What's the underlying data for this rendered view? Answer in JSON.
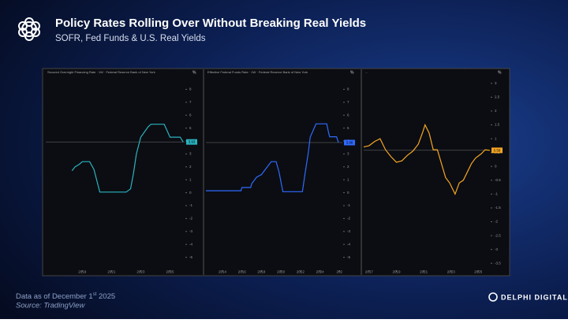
{
  "header": {
    "title": "Policy Rates Rolling Over Without Breaking Real Yields",
    "subtitle": "SOFR, Fed Funds & U.S. Real Yields"
  },
  "footer": {
    "date_prefix": "Data as of December 1",
    "date_suffix": "st",
    "date_year": "2025",
    "source": "Source: TradingView",
    "brand": "DELPHI DIGITAL"
  },
  "chart_data": [
    {
      "type": "line",
      "label": "Secured Overnight Financing Rate · 1W · Federal Reserve Bank of New York",
      "unit": "%",
      "color": "#2bb3c0",
      "x": [
        2018.3,
        2018.5,
        2018.8,
        2019.0,
        2019.5,
        2019.8,
        2020.2,
        2021.0,
        2022.0,
        2022.3,
        2022.5,
        2022.7,
        2023.0,
        2023.5,
        2023.7,
        2024.6,
        2024.8,
        2025.0,
        2025.7,
        2025.9
      ],
      "values": [
        1.7,
        2.0,
        2.2,
        2.4,
        2.4,
        1.8,
        0.05,
        0.05,
        0.05,
        0.3,
        1.5,
        3.0,
        4.3,
        5.1,
        5.3,
        5.3,
        4.8,
        4.3,
        4.3,
        3.93
      ],
      "last_value": 3.93,
      "xlim": [
        2016.5,
        2026.0
      ],
      "xticks": [
        2019,
        2021,
        2023,
        2025
      ],
      "ylim": [
        -6,
        9
      ],
      "yticks": [
        8,
        7,
        6,
        5,
        4,
        3,
        2,
        1,
        0,
        -1,
        -2,
        -3,
        -4,
        -5
      ]
    },
    {
      "type": "line",
      "label": "Effective Federal Funds Rate · 1W · Federal Reserve Bank of New York",
      "unit": "%",
      "color": "#2f6bff",
      "x": [
        2012.3,
        2015.9,
        2016.0,
        2016.9,
        2017.0,
        2017.5,
        2018.0,
        2018.5,
        2019.0,
        2019.5,
        2019.8,
        2020.2,
        2022.2,
        2022.5,
        2022.8,
        2023.0,
        2023.6,
        2024.7,
        2024.9,
        2025.0,
        2025.7,
        2025.9
      ],
      "values": [
        0.15,
        0.15,
        0.4,
        0.4,
        0.7,
        1.2,
        1.4,
        1.9,
        2.4,
        2.4,
        1.6,
        0.08,
        0.08,
        1.6,
        3.1,
        4.3,
        5.33,
        5.33,
        4.6,
        4.33,
        4.33,
        3.88
      ],
      "last_value": 3.88,
      "xlim": [
        2012.3,
        2026.3
      ],
      "xticks": [
        2014,
        2016,
        2018,
        2020,
        2022,
        2024,
        {
          "value": 2026,
          "label": "202"
        }
      ],
      "ylim": [
        -6,
        9
      ],
      "yticks": [
        8,
        7,
        6,
        5,
        4,
        3,
        2,
        1,
        0,
        -1,
        -2,
        -3,
        -4,
        -5
      ]
    },
    {
      "type": "line",
      "label": "...",
      "unit": "%",
      "color": "#f5a623",
      "x": [
        2016.6,
        2017.0,
        2017.4,
        2017.8,
        2018.2,
        2018.6,
        2019.0,
        2019.4,
        2019.8,
        2020.2,
        2020.6,
        2020.9,
        2021.1,
        2021.4,
        2021.7,
        2022.0,
        2022.3,
        2022.6,
        2022.9,
        2023.1,
        2023.3,
        2023.6,
        2023.9,
        2024.2,
        2024.5,
        2024.8,
        2025.2,
        2025.5,
        2025.85
      ],
      "values": [
        0.7,
        0.75,
        0.9,
        1.0,
        0.6,
        0.35,
        0.15,
        0.2,
        0.4,
        0.55,
        0.8,
        1.2,
        1.5,
        1.2,
        0.6,
        0.6,
        0.1,
        -0.4,
        -0.6,
        -0.8,
        -1.0,
        -0.6,
        -0.5,
        -0.2,
        0.1,
        0.3,
        0.45,
        0.6,
        0.58
      ],
      "last_value": 0.58,
      "xlim": [
        2016.6,
        2025.85
      ],
      "xticks": [
        2017,
        2019,
        2021,
        2023,
        2025
      ],
      "ylim": [
        -3.75,
        3.25
      ],
      "yticks": [
        3,
        2.5,
        2,
        1.5,
        1,
        0.5,
        0,
        -0.5,
        -1,
        -1.5,
        -2,
        -2.5,
        -3,
        -3.5
      ]
    }
  ]
}
